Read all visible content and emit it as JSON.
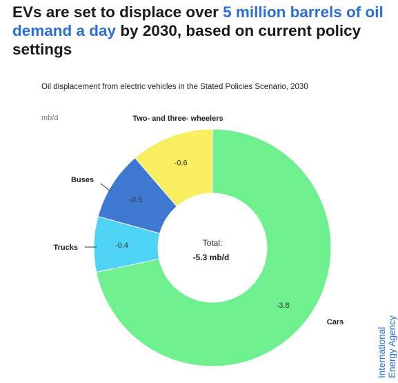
{
  "headline": {
    "part1": "EVs are set to displace over ",
    "highlight": "5 million barrels of oil demand a day",
    "part2": " by 2030, based on current policy settings"
  },
  "colors": {
    "highlight": "#2a6fd6"
  },
  "chart_data": {
    "type": "pie",
    "style": "donut",
    "title": "Oil displacement from electric vehicles in the Stated Policies Scenario, 2030",
    "unit": "mb/d",
    "center_label": "Total:",
    "center_value": "-5.3 mb/d",
    "slices": [
      {
        "name": "Cars",
        "value": -3.8,
        "label": "-3.8",
        "color": "#6ef08f"
      },
      {
        "name": "Trucks",
        "value": -0.4,
        "label": "-0.4",
        "color": "#4fd4f5"
      },
      {
        "name": "Buses",
        "value": -0.5,
        "label": "-0.5",
        "color": "#3f78d0"
      },
      {
        "name": "Two- and three- wheelers",
        "value": -0.6,
        "label": "-0.6",
        "color": "#f8ef60"
      }
    ]
  },
  "brand": {
    "line1": "International",
    "line2": "Energy Agency"
  }
}
